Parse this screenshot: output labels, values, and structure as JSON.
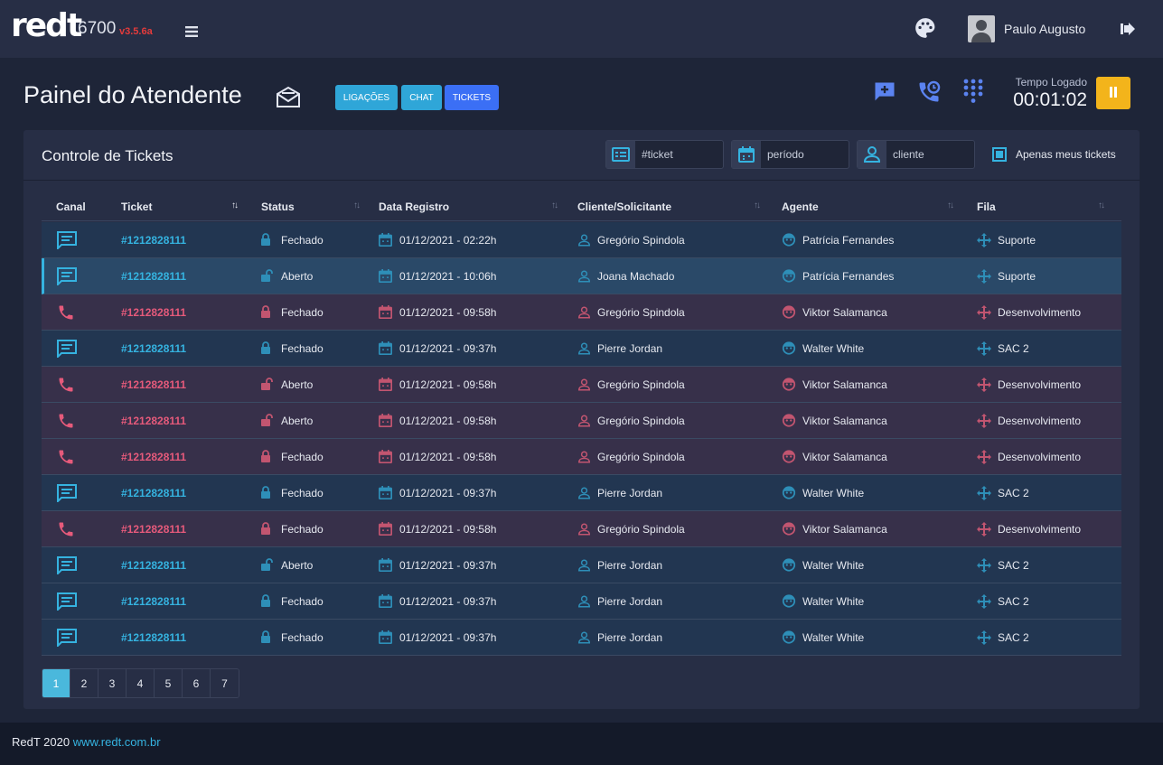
{
  "app": {
    "logo": "redt",
    "extension": "6700",
    "version": "v3.5.6a"
  },
  "navbar": {
    "user_name": "Paulo Augusto"
  },
  "header": {
    "title": "Painel do Atendente",
    "buttons": {
      "ligacoes": "LIGAÇÕES",
      "chat": "CHAT",
      "tickets": "TICKETS"
    },
    "tempo_label": "Tempo Logado",
    "tempo_value": "00:01:02"
  },
  "panel": {
    "title": "Controle de Tickets",
    "filters": {
      "ticket_placeholder": "#ticket",
      "periodo_placeholder": "período",
      "cliente_placeholder": "cliente"
    },
    "only_mine_label": "Apenas meus tickets"
  },
  "table": {
    "columns": [
      "Canal",
      "Ticket",
      "Status",
      "Data Registro",
      "Cliente/Solicitante",
      "Agente",
      "Fila"
    ],
    "rows": [
      {
        "canal": "chat",
        "ticket": "#1212828111",
        "status": "Fechado",
        "date": "01/12/2021 - 02:22h",
        "cliente": "Gregório Spindola",
        "agente": "Patrícia Fernandes",
        "fila": "Suporte"
      },
      {
        "canal": "chat",
        "ticket": "#1212828111",
        "status": "Aberto",
        "date": "01/12/2021 -  10:06h",
        "cliente": "Joana Machado",
        "agente": "Patrícia Fernandes",
        "fila": "Suporte"
      },
      {
        "canal": "call",
        "ticket": "#1212828111",
        "status": "Fechado",
        "date": "01/12/2021 - 09:58h",
        "cliente": "Gregório Spindola",
        "agente": "Viktor Salamanca",
        "fila": "Desenvolvimento"
      },
      {
        "canal": "chat",
        "ticket": "#1212828111",
        "status": "Fechado",
        "date": "01/12/2021 - 09:37h",
        "cliente": "Pierre Jordan",
        "agente": "Walter White",
        "fila": "SAC 2"
      },
      {
        "canal": "call",
        "ticket": "#1212828111",
        "status": "Aberto",
        "date": "01/12/2021 - 09:58h",
        "cliente": "Gregório Spindola",
        "agente": "Viktor Salamanca",
        "fila": "Desenvolvimento"
      },
      {
        "canal": "call",
        "ticket": "#1212828111",
        "status": "Aberto",
        "date": "01/12/2021 - 09:58h",
        "cliente": "Gregório Spindola",
        "agente": "Viktor Salamanca",
        "fila": "Desenvolvimento"
      },
      {
        "canal": "call",
        "ticket": "#1212828111",
        "status": "Fechado",
        "date": "01/12/2021 - 09:58h",
        "cliente": "Gregório Spindola",
        "agente": "Viktor Salamanca",
        "fila": "Desenvolvimento"
      },
      {
        "canal": "chat",
        "ticket": "#1212828111",
        "status": "Fechado",
        "date": "01/12/2021 - 09:37h",
        "cliente": "Pierre Jordan",
        "agente": "Walter White",
        "fila": "SAC 2"
      },
      {
        "canal": "call",
        "ticket": "#1212828111",
        "status": "Fechado",
        "date": "01/12/2021 - 09:58h",
        "cliente": "Gregório Spindola",
        "agente": "Viktor Salamanca",
        "fila": "Desenvolvimento"
      },
      {
        "canal": "chat",
        "ticket": "#1212828111",
        "status": "Aberto",
        "date": "01/12/2021 - 09:37h",
        "cliente": "Pierre Jordan",
        "agente": "Walter White",
        "fila": "SAC 2"
      },
      {
        "canal": "chat",
        "ticket": "#1212828111",
        "status": "Fechado",
        "date": "01/12/2021 - 09:37h",
        "cliente": "Pierre Jordan",
        "agente": "Walter White",
        "fila": "SAC 2"
      },
      {
        "canal": "chat",
        "ticket": "#1212828111",
        "status": "Fechado",
        "date": "01/12/2021 - 09:37h",
        "cliente": "Pierre Jordan",
        "agente": "Walter White",
        "fila": "SAC 2"
      }
    ],
    "selected_row": 1,
    "sorted_column": "Ticket"
  },
  "pagination": {
    "pages": [
      "1",
      "2",
      "3",
      "4",
      "5",
      "6",
      "7"
    ],
    "current": "1"
  },
  "footer": {
    "text": "RedT 2020",
    "link": "www.redt.com.br"
  },
  "colors": {
    "accent": "#35b3e0",
    "call": "#e65a7b",
    "pause": "#f3b41b",
    "tickets_button": "#3b6ff5"
  },
  "icons": [
    "menu-icon",
    "palette-icon",
    "logout-icon",
    "mail-icon",
    "new-chat-icon",
    "call-history-icon",
    "dialpad-icon",
    "pause-icon",
    "ticket-icon",
    "calendar-icon",
    "user-icon",
    "chat-icon",
    "phone-icon",
    "lock-icon",
    "unlock-icon",
    "agent-icon",
    "queue-icon"
  ]
}
